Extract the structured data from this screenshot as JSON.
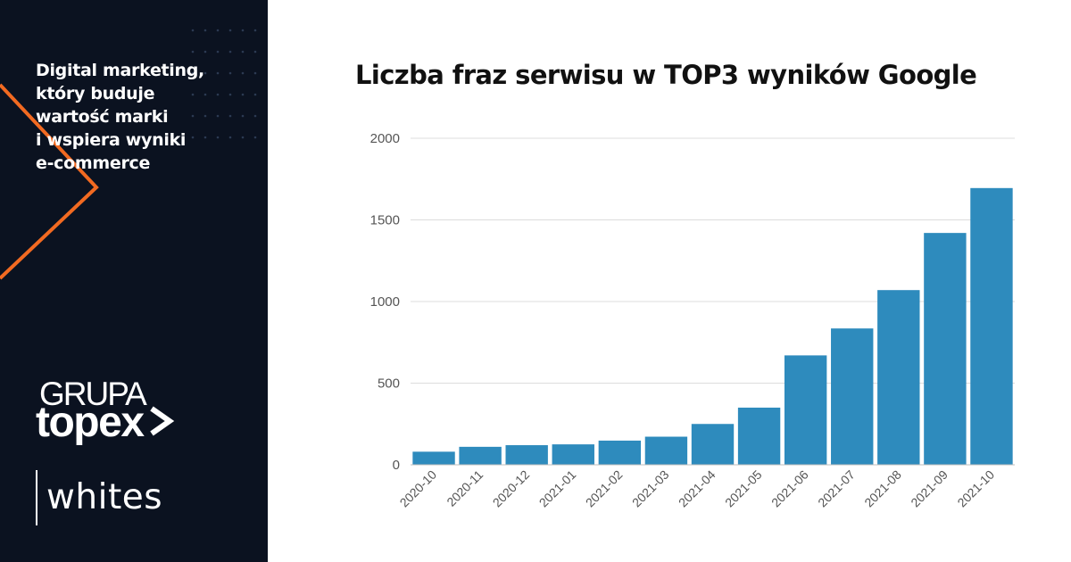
{
  "sidebar": {
    "tagline_lines": [
      "Digital marketing,",
      "który buduje",
      "wartość marki",
      "i wspiera wyniki",
      "e-commerce"
    ],
    "logo_top": "GRUPA",
    "logo_bottom": "topex",
    "logo_arrow_icon": "chevron-right-icon",
    "brand": "whites",
    "accent_color": "#f26a21",
    "background_color": "#0b1220"
  },
  "chart_data": {
    "type": "bar",
    "title": "Liczba fraz serwisu w TOP3 wyników Google",
    "xlabel": "",
    "ylabel": "",
    "categories": [
      "2020-10",
      "2020-11",
      "2020-12",
      "2021-01",
      "2021-02",
      "2021-03",
      "2021-04",
      "2021-05",
      "2021-06",
      "2021-07",
      "2021-08",
      "2021-09",
      "2021-10"
    ],
    "values": [
      80,
      110,
      120,
      125,
      148,
      172,
      250,
      350,
      670,
      835,
      1070,
      1420,
      1695
    ],
    "ylim": [
      0,
      2000
    ],
    "yticks": [
      "0",
      "500",
      "1000",
      "1500",
      "2000"
    ],
    "grid": true,
    "bar_color": "#2e8bbd",
    "grid_color": "#dcdcdc"
  }
}
